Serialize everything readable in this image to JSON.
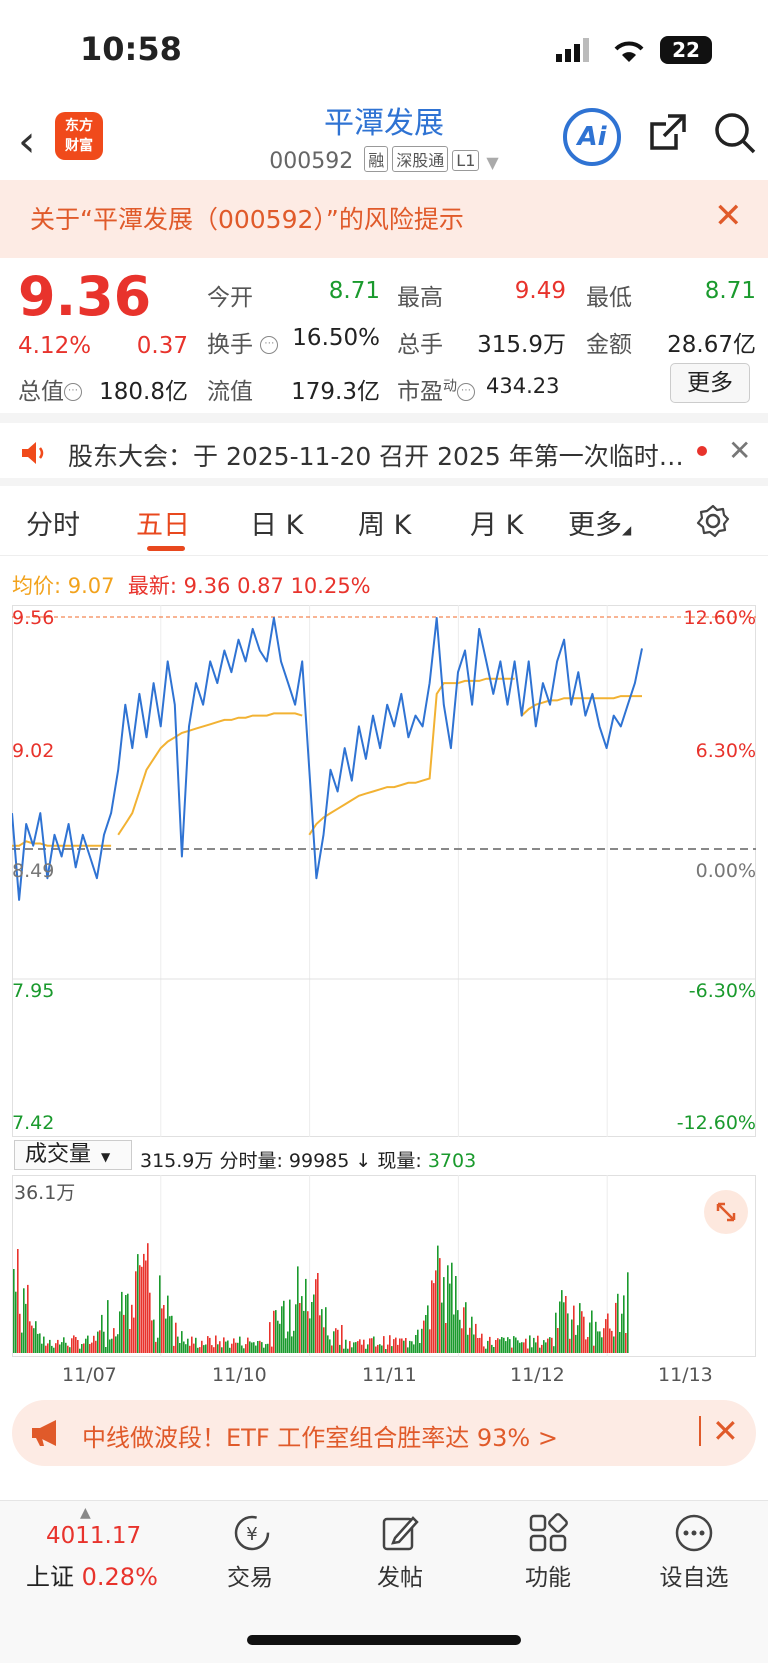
{
  "status_bar": {
    "time": "10:58",
    "battery": "22"
  },
  "header": {
    "logo_text_1": "东方",
    "logo_text_2": "财富",
    "stock_name": "平潭发展",
    "stock_code": "000592",
    "tags": [
      "融",
      "深股通",
      "L1"
    ],
    "ai_label": "Ai"
  },
  "risk_bar": {
    "text": "关于“平潭发展（000592）”的风险提示"
  },
  "quote": {
    "price": "9.36",
    "change_pct": "4.12%",
    "change_amt": "0.37",
    "fields": [
      {
        "label": "今开",
        "value": "8.71",
        "color": "green"
      },
      {
        "label": "最高",
        "value": "9.49",
        "color": "red"
      },
      {
        "label": "最低",
        "value": "8.71",
        "color": "green"
      },
      {
        "label": "换手",
        "value": "16.50%",
        "color": "default"
      },
      {
        "label": "总手",
        "value": "315.9万",
        "color": "default"
      },
      {
        "label": "金额",
        "value": "28.67亿",
        "color": "default"
      },
      {
        "label": "总值",
        "value": "180.8亿",
        "color": "default"
      },
      {
        "label": "流值",
        "value": "179.3亿",
        "color": "default"
      },
      {
        "label": "市盈",
        "label_sup": "动",
        "value": "434.23",
        "color": "default"
      }
    ],
    "more_label": "更多"
  },
  "notice": {
    "text": "股东大会：于 2025-11-20 召开 2025 年第一次临时…"
  },
  "tabs": [
    {
      "label": "分时",
      "active": false
    },
    {
      "label": "五日",
      "active": true
    },
    {
      "label": "日 K",
      "active": false
    },
    {
      "label": "周 K",
      "active": false
    },
    {
      "label": "月 K",
      "active": false
    },
    {
      "label": "更多",
      "active": false
    }
  ],
  "chart_legend": {
    "avg_label": "均价:",
    "avg_value": "9.07",
    "latest_label": "最新:",
    "latest_value": "9.36",
    "latest_change": "0.87",
    "latest_pct": "10.25%"
  },
  "chart_data": {
    "type": "line",
    "y_ticks_left": [
      "9.56",
      "9.02",
      "8.49",
      "7.95",
      "7.42"
    ],
    "y_ticks_right": [
      "12.60%",
      "6.30%",
      "0.00%",
      "-6.30%",
      "-12.60%"
    ],
    "ylim": [
      7.42,
      9.56
    ],
    "x_labels": [
      "11/07",
      "11/10",
      "11/11",
      "11/12",
      "11/13"
    ],
    "series": [],
    "price_points": [
      8.6,
      8.2,
      8.55,
      8.45,
      8.6,
      8.3,
      8.5,
      8.4,
      8.55,
      8.35,
      8.5,
      8.4,
      8.3,
      8.5,
      8.6,
      8.8,
      9.1,
      8.9,
      9.15,
      8.95,
      9.2,
      9.0,
      9.3,
      9.1,
      8.4,
      9.0,
      9.2,
      9.1,
      9.3,
      9.2,
      9.35,
      9.25,
      9.4,
      9.3,
      9.45,
      9.35,
      9.3,
      9.5,
      9.3,
      9.2,
      9.1,
      9.3,
      8.8,
      8.3,
      8.5,
      8.8,
      8.7,
      8.9,
      8.75,
      9.0,
      8.85,
      9.05,
      8.9,
      9.1,
      9.0,
      9.15,
      8.95,
      9.05,
      9.0,
      9.2,
      9.5,
      9.1,
      8.9,
      9.25,
      9.35,
      9.1,
      9.45,
      9.3,
      9.15,
      9.3,
      9.1,
      9.3,
      9.05,
      9.3,
      9.0,
      9.2,
      9.1,
      9.3,
      9.4,
      9.1,
      9.25,
      9.05,
      9.15,
      9.0,
      8.9,
      9.05,
      9.0,
      9.1,
      9.2,
      9.36
    ],
    "avg_points": [
      8.45,
      8.45,
      8.47,
      8.46,
      8.46,
      8.45,
      8.45,
      8.45,
      8.45,
      8.45,
      8.45,
      8.45,
      8.45,
      8.45,
      8.45,
      8.5,
      8.55,
      8.6,
      8.7,
      8.8,
      8.85,
      8.9,
      8.93,
      8.95,
      8.97,
      8.98,
      8.99,
      9.0,
      9.01,
      9.02,
      9.03,
      9.03,
      9.04,
      9.04,
      9.05,
      9.05,
      9.05,
      9.06,
      9.06,
      9.06,
      9.06,
      9.05,
      8.5,
      8.55,
      8.58,
      8.6,
      8.62,
      8.64,
      8.66,
      8.68,
      8.69,
      8.7,
      8.71,
      8.72,
      8.72,
      8.73,
      8.74,
      8.74,
      8.75,
      8.76,
      9.15,
      9.2,
      9.2,
      9.2,
      9.21,
      9.21,
      9.21,
      9.22,
      9.22,
      9.22,
      9.22,
      9.22,
      9.05,
      9.08,
      9.1,
      9.11,
      9.12,
      9.12,
      9.13,
      9.13,
      9.13,
      9.13,
      9.13,
      9.13,
      9.13,
      9.13,
      9.14,
      9.14,
      9.14,
      9.14
    ],
    "volume_max_label": "36.1万"
  },
  "volume_panel": {
    "select_label": "成交量",
    "total": "315.9万",
    "tick_label": "分时量:",
    "tick_value": "99985",
    "now_label": "现量:",
    "now_value": "3703"
  },
  "promo": {
    "text": "中线做波段！ETF 工作室组合胜率达 93% >"
  },
  "bottom_nav": {
    "index_value": "4011.17",
    "index_name": "上证",
    "index_pct": "0.28%",
    "items": [
      "交易",
      "发帖",
      "功能",
      "设自选"
    ]
  },
  "colors": {
    "accent": "#e8481e",
    "up": "#e8332c",
    "down": "#1a9a2d",
    "price_line": "#2f73d3",
    "avg_line": "#f2b233"
  }
}
